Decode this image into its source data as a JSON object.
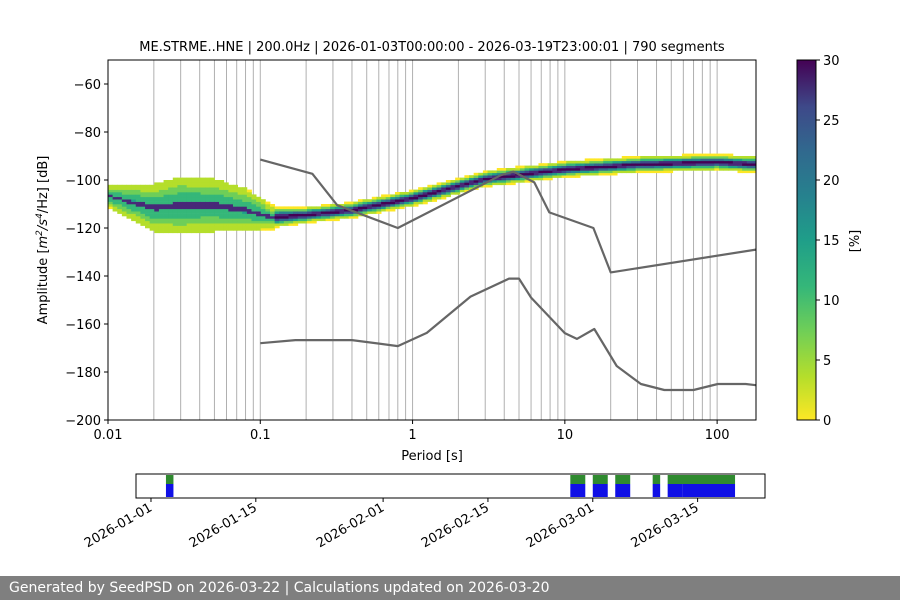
{
  "chart_data": {
    "type": "heatmap",
    "title": "ME.STRME..HNE | 200.0Hz | 2026-01-03T00:00:00 - 2026-03-19T23:00:01 | 790 segments",
    "xlabel": "Period [s]",
    "ylabel_parts": {
      "before": "Amplitude [",
      "m": "m",
      "exp2": "2",
      "s": "/s",
      "exp4": "4",
      "after": "/Hz] [dB]"
    },
    "xscale": "log",
    "xlim": [
      0.01,
      180
    ],
    "ylim": [
      -200,
      -50
    ],
    "xticks": [
      0.01,
      0.1,
      1,
      10,
      100
    ],
    "xtick_labels": [
      "0.01",
      "0.1",
      "1",
      "10",
      "100"
    ],
    "yticks": [
      -60,
      -80,
      -100,
      -120,
      -140,
      -160,
      -180,
      -200
    ],
    "ytick_labels": [
      "−60",
      "−80",
      "−100",
      "−120",
      "−140",
      "−160",
      "−180",
      "−200"
    ],
    "grid": "vertical-log",
    "colorbar": {
      "label": "[%]",
      "range": [
        0,
        30
      ],
      "ticks": [
        0,
        5,
        10,
        15,
        20,
        25,
        30
      ],
      "tick_labels": [
        "0",
        "5",
        "10",
        "15",
        "20",
        "25",
        "30"
      ],
      "colormap": "viridis_r"
    },
    "density": [
      {
        "period": 0.01,
        "mode_db": -107,
        "spread_db": 4
      },
      {
        "period": 0.015,
        "mode_db": -110,
        "spread_db": 7
      },
      {
        "period": 0.02,
        "mode_db": -112,
        "spread_db": 9
      },
      {
        "period": 0.03,
        "mode_db": -111,
        "spread_db": 11
      },
      {
        "period": 0.05,
        "mode_db": -111,
        "spread_db": 10
      },
      {
        "period": 0.08,
        "mode_db": -113,
        "spread_db": 8
      },
      {
        "period": 0.12,
        "mode_db": -116,
        "spread_db": 4
      },
      {
        "period": 0.2,
        "mode_db": -115,
        "spread_db": 3
      },
      {
        "period": 0.4,
        "mode_db": -113,
        "spread_db": 3
      },
      {
        "period": 1,
        "mode_db": -108,
        "spread_db": 3
      },
      {
        "period": 3,
        "mode_db": -100,
        "spread_db": 3
      },
      {
        "period": 10,
        "mode_db": -96,
        "spread_db": 3
      },
      {
        "period": 30,
        "mode_db": -94,
        "spread_db": 3
      },
      {
        "period": 100,
        "mode_db": -93,
        "spread_db": 3
      },
      {
        "period": 180,
        "mode_db": -94,
        "spread_db": 3
      }
    ],
    "series": [
      {
        "name": "NHNM",
        "color": "#666666",
        "x": [
          0.1,
          0.22,
          0.32,
          0.8,
          3.8,
          4.6,
          6.3,
          7.9,
          15.4,
          20,
          180
        ],
        "y": [
          -91.5,
          -97.4,
          -110.5,
          -120,
          -98,
          -96.5,
          -101,
          -113.5,
          -120,
          -138.5,
          -129
        ]
      },
      {
        "name": "NLNM",
        "color": "#666666",
        "x": [
          0.1,
          0.17,
          0.4,
          0.8,
          1.24,
          2.4,
          4.3,
          5,
          6,
          10,
          12,
          15.6,
          21.9,
          31.6,
          45,
          70,
          101,
          154,
          180
        ],
        "y": [
          -168,
          -166.7,
          -166.7,
          -169.2,
          -163.7,
          -148.6,
          -141.1,
          -141.1,
          -149,
          -163.8,
          -166.2,
          -162.1,
          -177.5,
          -185,
          -187.5,
          -187.5,
          -185,
          -185,
          -185.5
        ]
      }
    ],
    "timeline": {
      "start_date": "2026-01-01",
      "range_days": [
        -2,
        82
      ],
      "tick_days": [
        0,
        14,
        31,
        45,
        59,
        73
      ],
      "tick_labels": [
        "2026-01-01",
        "2026-01-15",
        "2026-02-01",
        "2026-02-15",
        "2026-03-01",
        "2026-03-15"
      ],
      "segments_green": [
        [
          2,
          3
        ],
        [
          56,
          58
        ],
        [
          59,
          61
        ],
        [
          62,
          64
        ],
        [
          67,
          68
        ],
        [
          69,
          78
        ]
      ],
      "segments_blue": [
        [
          2,
          3
        ],
        [
          56,
          58
        ],
        [
          59,
          61
        ],
        [
          62,
          64
        ],
        [
          67,
          68
        ],
        [
          69,
          71
        ],
        [
          71,
          78
        ]
      ]
    }
  },
  "footer": {
    "text": "Generated by SeedPSD on 2026-03-22 | Calculations updated on 2026-03-20"
  },
  "colors": {
    "green": "#2f8a2f",
    "blue": "#1010e6",
    "grid": "#b0b0b0",
    "curve": "#666666"
  }
}
